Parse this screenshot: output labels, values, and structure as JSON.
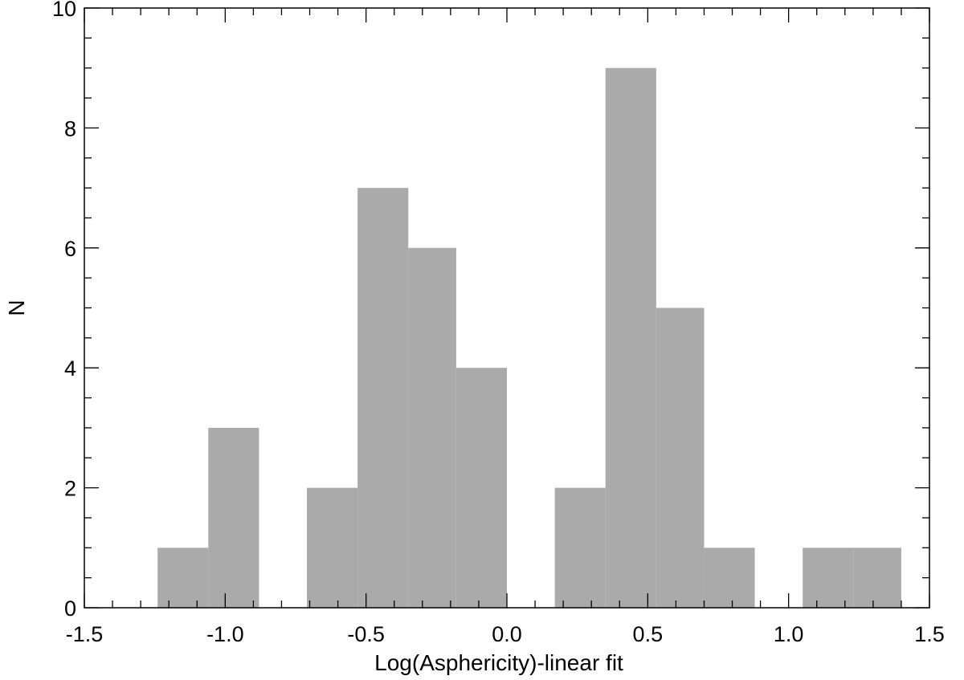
{
  "chart_data": {
    "type": "bar",
    "title": "",
    "xlabel": "Log(Asphericity)-linear fit",
    "ylabel": "N",
    "xlim": [
      -1.5,
      1.5
    ],
    "ylim": [
      0,
      10
    ],
    "x_ticks": [
      "-1.5",
      "-1.0",
      "-0.5",
      "0.0",
      "0.5",
      "1.0",
      "1.5"
    ],
    "y_ticks": [
      "0",
      "2",
      "4",
      "6",
      "8",
      "10"
    ],
    "grid": false,
    "bar_color": "#aaaaaa",
    "bins": [
      {
        "x0": -1.24,
        "x1": -1.06,
        "count": 1
      },
      {
        "x0": -1.06,
        "x1": -0.88,
        "count": 3
      },
      {
        "x0": -0.88,
        "x1": -0.71,
        "count": 0
      },
      {
        "x0": -0.71,
        "x1": -0.53,
        "count": 2
      },
      {
        "x0": -0.53,
        "x1": -0.35,
        "count": 7
      },
      {
        "x0": -0.35,
        "x1": -0.18,
        "count": 6
      },
      {
        "x0": -0.18,
        "x1": 0.0,
        "count": 4
      },
      {
        "x0": 0.0,
        "x1": 0.17,
        "count": 0
      },
      {
        "x0": 0.17,
        "x1": 0.35,
        "count": 2
      },
      {
        "x0": 0.35,
        "x1": 0.53,
        "count": 9
      },
      {
        "x0": 0.53,
        "x1": 0.7,
        "count": 5
      },
      {
        "x0": 0.7,
        "x1": 0.88,
        "count": 1
      },
      {
        "x0": 0.88,
        "x1": 1.05,
        "count": 0
      },
      {
        "x0": 1.05,
        "x1": 1.23,
        "count": 1
      },
      {
        "x0": 1.23,
        "x1": 1.4,
        "count": 1
      }
    ]
  }
}
